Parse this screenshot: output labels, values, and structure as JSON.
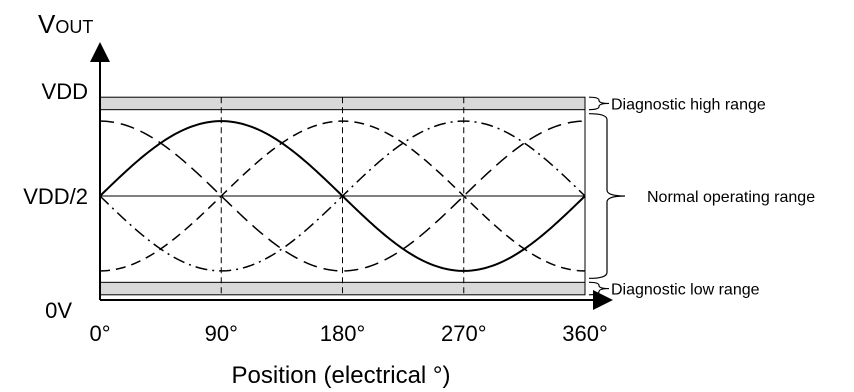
{
  "chart_data": {
    "type": "line",
    "title": "",
    "ylabel": {
      "main": "V",
      "sub": "OUT"
    },
    "xlabel": "Position (electrical °)",
    "x_ticks": [
      {
        "value": 0,
        "label": "0°"
      },
      {
        "value": 90,
        "label": "90°"
      },
      {
        "value": 180,
        "label": "180°"
      },
      {
        "value": 270,
        "label": "270°"
      },
      {
        "value": 360,
        "label": "360°"
      }
    ],
    "y_levels": [
      {
        "key": "vdd",
        "label": "VDD"
      },
      {
        "key": "half",
        "label": "VDD/2"
      },
      {
        "key": "zero",
        "label": "0V"
      }
    ],
    "xlim": [
      0,
      360
    ],
    "ylim": [
      0,
      1
    ],
    "bands": {
      "diag_high": [
        0.915,
        0.975
      ],
      "diag_low": [
        0.025,
        0.085
      ]
    },
    "series": [
      {
        "style": "solid",
        "phase_deg": 0,
        "amplitude": 0.36,
        "offset": 0.5
      },
      {
        "style": "dashed",
        "phase_deg": 90,
        "amplitude": 0.36,
        "offset": 0.5
      },
      {
        "style": "dashdot",
        "phase_deg": 180,
        "amplitude": 0.36,
        "offset": 0.5
      },
      {
        "style": "longdash",
        "phase_deg": 270,
        "amplitude": 0.36,
        "offset": 0.5
      }
    ],
    "ranges": [
      {
        "key": "high",
        "label": "Diagnostic high range"
      },
      {
        "key": "normal",
        "label": "Normal operating range"
      },
      {
        "key": "low",
        "label": "Diagnostic low range"
      }
    ]
  }
}
